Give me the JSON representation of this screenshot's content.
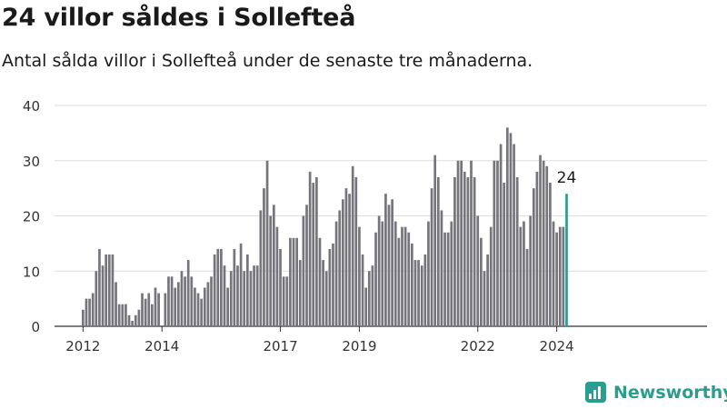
{
  "chart_data": {
    "type": "bar",
    "title": "24 villor såldes i Sollefteå",
    "subtitle": "Antal sålda villor i Sollefteå under de senaste tre månaderna.",
    "ylim": [
      0,
      40
    ],
    "yticks": [
      0,
      10,
      20,
      30,
      40
    ],
    "xticks": [
      {
        "label": "2012",
        "index": 0
      },
      {
        "label": "2014",
        "index": 24
      },
      {
        "label": "2017",
        "index": 60
      },
      {
        "label": "2019",
        "index": 84
      },
      {
        "label": "2022",
        "index": 120
      },
      {
        "label": "2024",
        "index": 144
      }
    ],
    "grid": true,
    "highlight_color": "#2a9d8f",
    "bar_color": "#76757b",
    "highlight_label": "24",
    "values": [
      3,
      5,
      5,
      6,
      10,
      14,
      11,
      13,
      13,
      13,
      8,
      4,
      4,
      4,
      2,
      1,
      2,
      3,
      6,
      5,
      6,
      4,
      7,
      6,
      0,
      6,
      9,
      9,
      7,
      8,
      10,
      9,
      12,
      9,
      7,
      6,
      5,
      7,
      8,
      9,
      13,
      14,
      14,
      11,
      7,
      10,
      14,
      11,
      15,
      10,
      13,
      10,
      11,
      11,
      21,
      25,
      30,
      20,
      22,
      18,
      14,
      9,
      9,
      16,
      16,
      16,
      12,
      20,
      22,
      28,
      26,
      27,
      16,
      12,
      10,
      14,
      15,
      19,
      21,
      23,
      25,
      24,
      29,
      27,
      18,
      13,
      7,
      10,
      11,
      17,
      20,
      19,
      24,
      22,
      23,
      19,
      16,
      18,
      18,
      17,
      15,
      12,
      12,
      11,
      13,
      19,
      25,
      31,
      27,
      21,
      17,
      17,
      19,
      27,
      30,
      30,
      28,
      27,
      30,
      27,
      20,
      16,
      10,
      13,
      18,
      30,
      30,
      33,
      26,
      36,
      35,
      33,
      27,
      18,
      19,
      14,
      20,
      25,
      28,
      31,
      30,
      29,
      26,
      19,
      17,
      18,
      18,
      24
    ]
  },
  "brand": {
    "name": "Newsworthy"
  }
}
